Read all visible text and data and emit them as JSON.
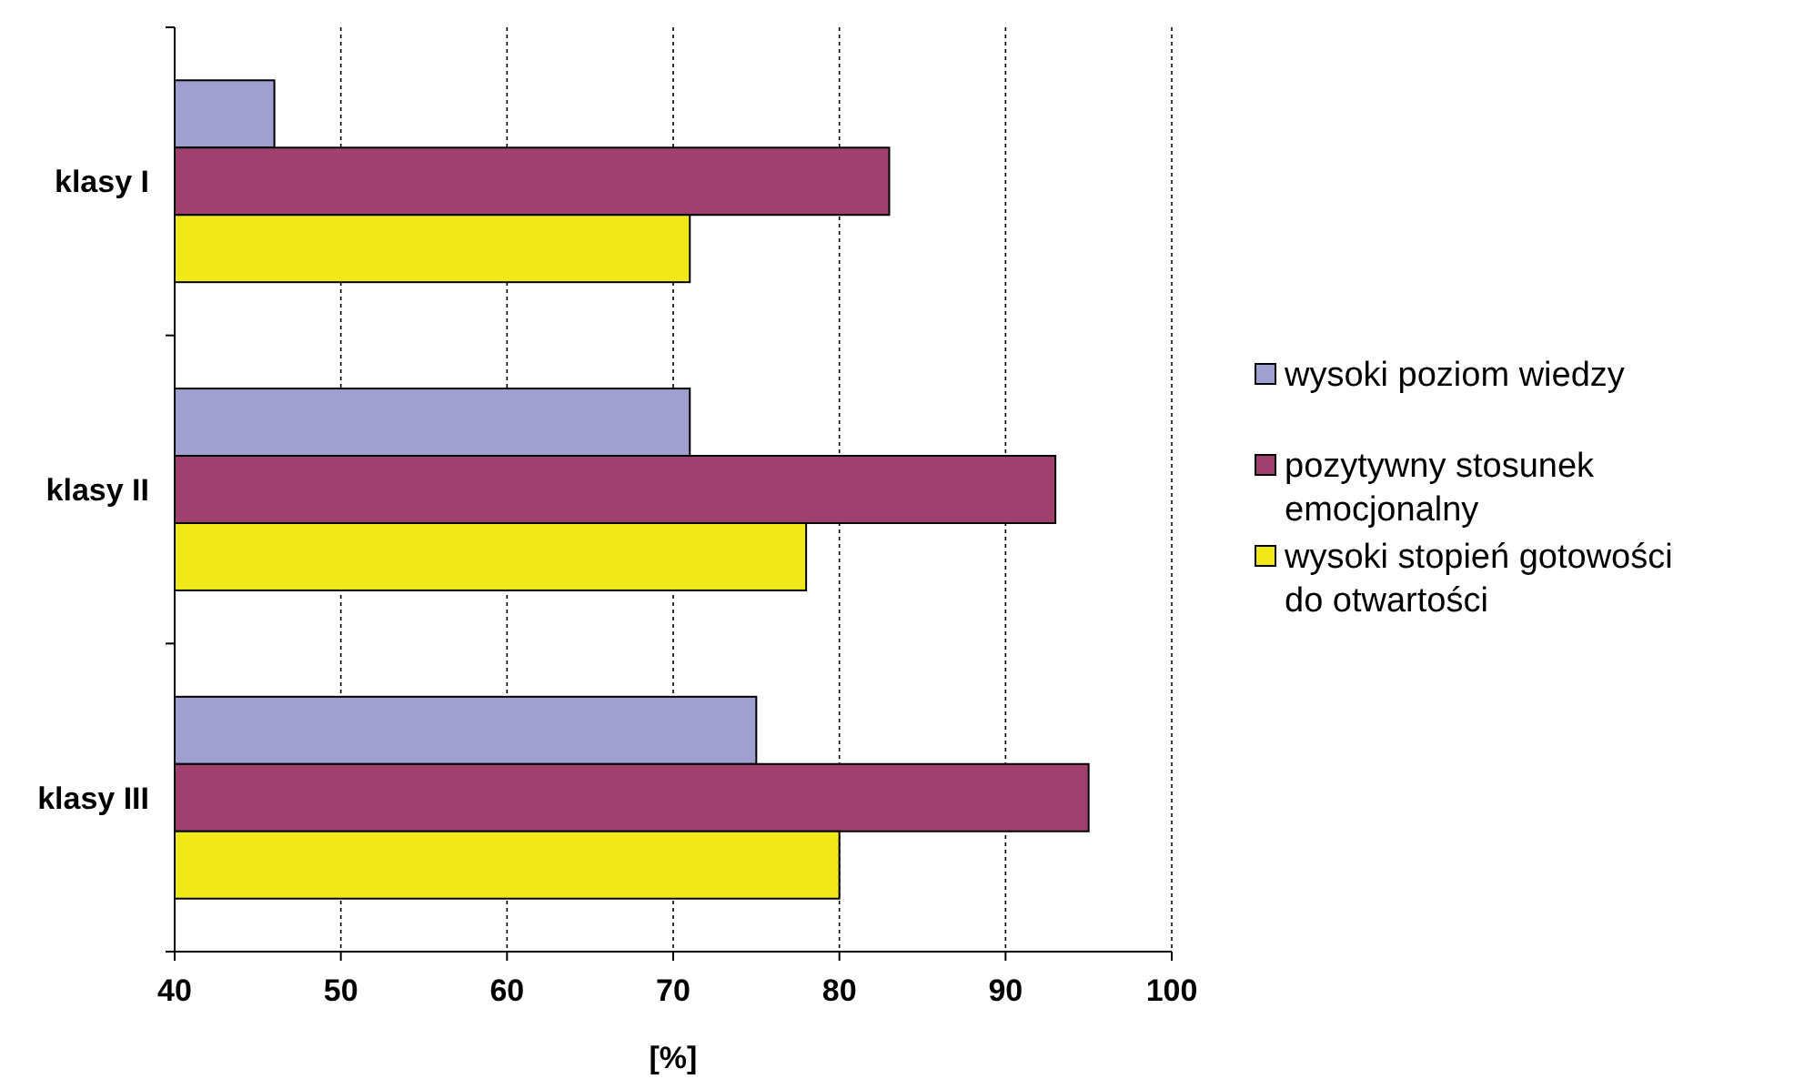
{
  "chart_data": {
    "type": "bar",
    "orientation": "horizontal",
    "categories": [
      "klasy I",
      "klasy II",
      "klasy III"
    ],
    "series": [
      {
        "name": "wysoki poziom wiedzy",
        "color": "#a0a0d0",
        "values": [
          46,
          71,
          75
        ]
      },
      {
        "name": "pozytywny stosunek emocjonalny",
        "color": "#a0406e",
        "values": [
          83,
          93,
          95
        ]
      },
      {
        "name": "wysoki stopień gotowości do otwartości",
        "color": "#f0e818",
        "values": [
          71,
          78,
          80
        ]
      }
    ],
    "xlim": [
      40,
      100
    ],
    "xticks": [
      40,
      50,
      60,
      70,
      80,
      90,
      100
    ],
    "xlabel": "[%]",
    "grid": "x",
    "legend": "right"
  }
}
